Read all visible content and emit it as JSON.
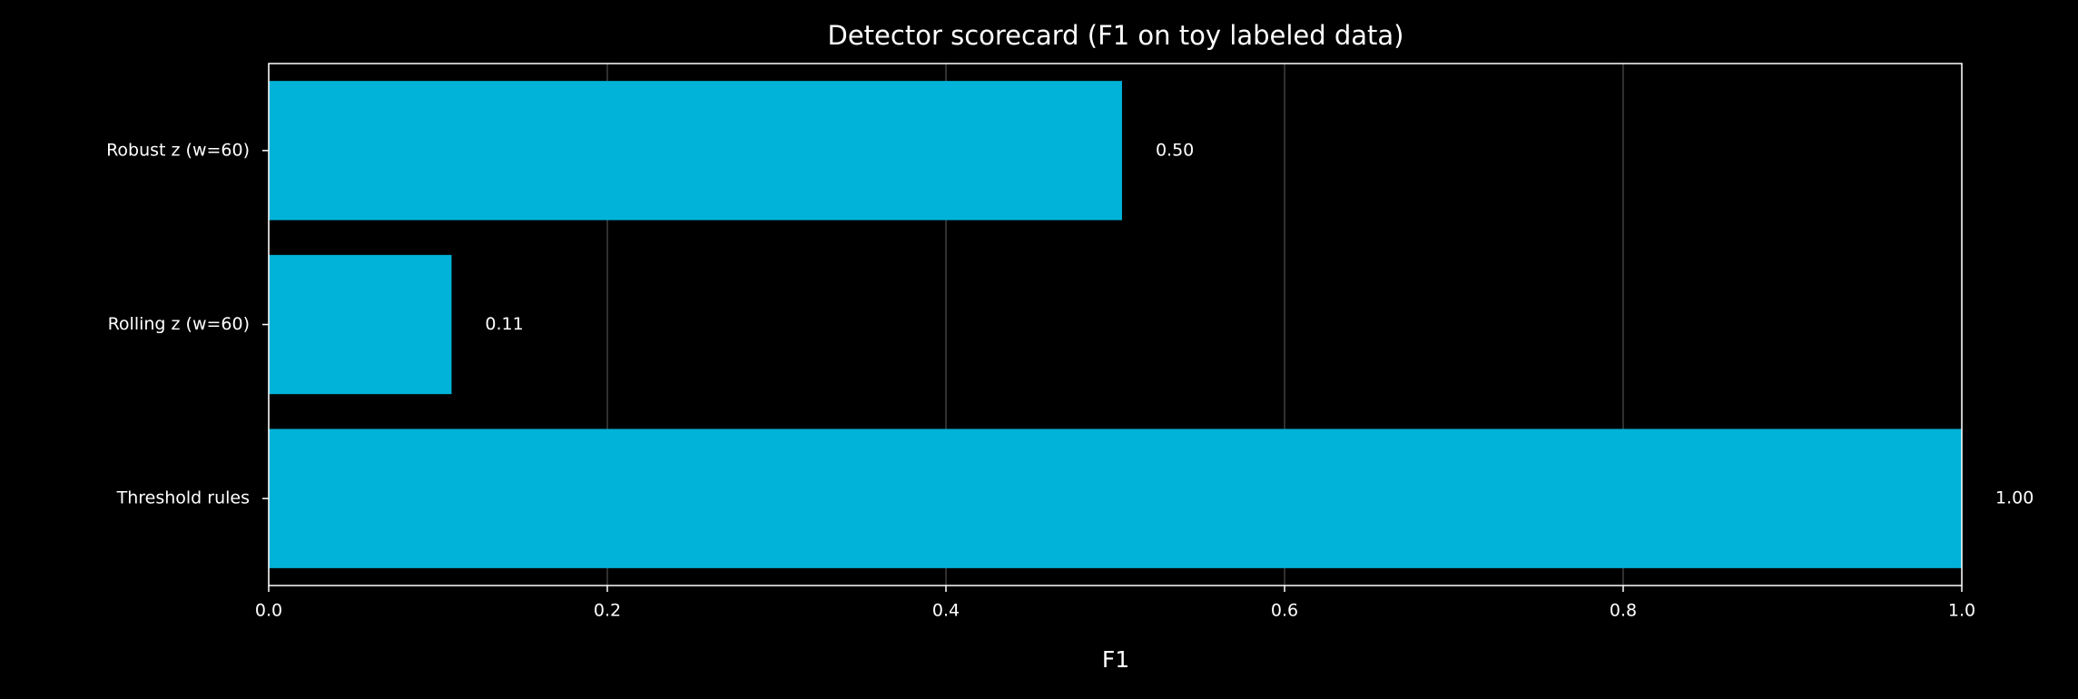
{
  "chart_data": {
    "type": "barh",
    "title": "Detector scorecard (F1 on toy labeled data)",
    "xlabel": "F1",
    "categories": [
      "Threshold rules",
      "Rolling z (w=60)",
      "Robust z (w=60)"
    ],
    "values": [
      1.0,
      0.108,
      0.504
    ],
    "value_labels": [
      "1.00",
      "0.11",
      "0.50"
    ],
    "color": "#02b3d9",
    "xlim": [
      0,
      1
    ],
    "xticks": [
      {
        "value": 0,
        "label": "0.0"
      },
      0.2,
      0.4,
      0.6,
      0.8,
      {
        "value": 1,
        "label": "1.0"
      }
    ],
    "grid": true
  }
}
